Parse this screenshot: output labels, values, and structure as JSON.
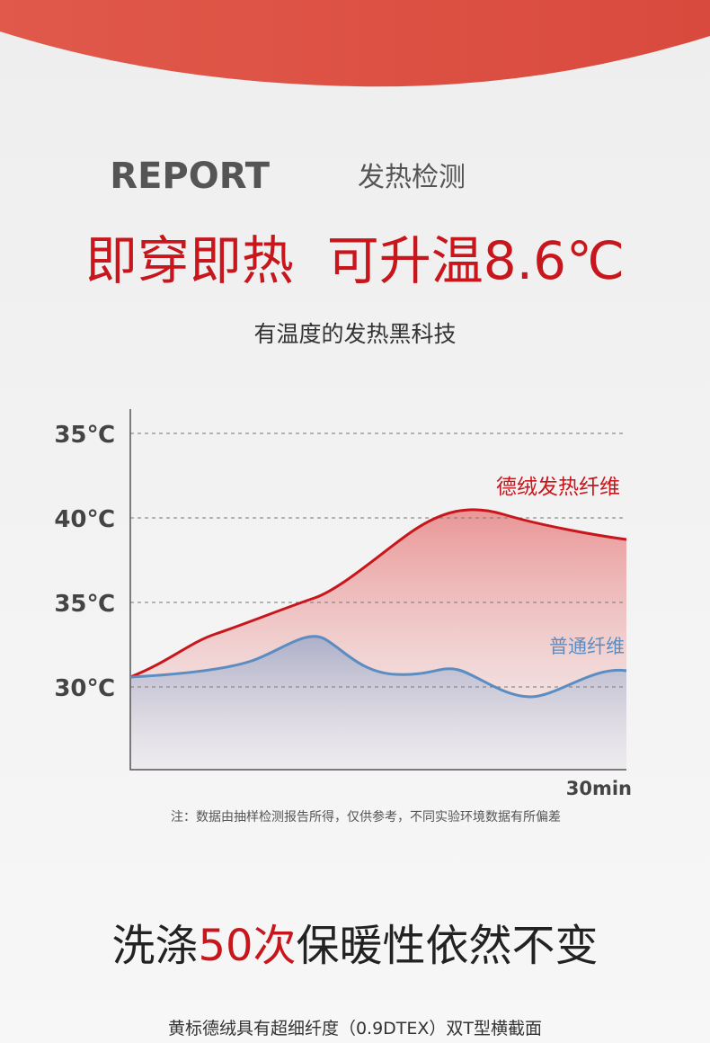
{
  "header": {
    "title_en": "REPORT",
    "title_cn": "发热检测",
    "headline": "即穿即热  可升温8.6℃",
    "subtitle": "有温度的发热黑科技"
  },
  "figure": {
    "y_labels": [
      "35℃",
      "40℃",
      "35℃",
      "30℃"
    ],
    "series_labels": [
      "德绒发热纤维",
      "普通纤维"
    ],
    "x_label": "30min",
    "note": "注：数据由抽样检测报告所得，仅供参考，不同实验环境数据有所偏差"
  },
  "section": {
    "headline_parts": [
      "洗涤",
      "50次",
      "保暖性依然不变"
    ],
    "caption": "黄标德绒具有超细纤度（0.9DTEX）双T型横截面"
  }
}
